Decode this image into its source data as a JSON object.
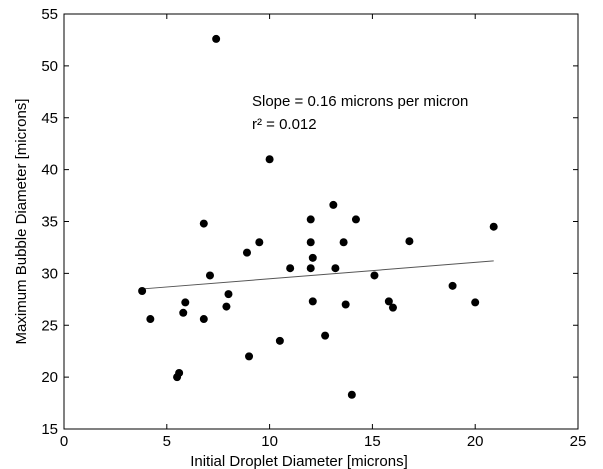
{
  "chart_data": {
    "type": "scatter",
    "title": "",
    "xlabel": "Initial Droplet Diameter [microns]",
    "ylabel": "Maximum Bubble Diameter [microns]",
    "xlim": [
      0,
      25
    ],
    "ylim": [
      15,
      55
    ],
    "xticks": [
      0,
      5,
      10,
      15,
      20,
      25
    ],
    "yticks": [
      15,
      20,
      25,
      30,
      35,
      40,
      45,
      50,
      55
    ],
    "grid": false,
    "legend": "none",
    "marker_color": "#000000",
    "fit_line_color": "#555555",
    "points": [
      {
        "x": 3.8,
        "y": 28.3
      },
      {
        "x": 4.2,
        "y": 25.6
      },
      {
        "x": 5.5,
        "y": 20.0
      },
      {
        "x": 5.6,
        "y": 20.4
      },
      {
        "x": 5.8,
        "y": 26.2
      },
      {
        "x": 5.9,
        "y": 27.2
      },
      {
        "x": 6.8,
        "y": 25.6
      },
      {
        "x": 6.8,
        "y": 34.8
      },
      {
        "x": 7.1,
        "y": 29.8
      },
      {
        "x": 7.4,
        "y": 52.6
      },
      {
        "x": 7.9,
        "y": 26.8
      },
      {
        "x": 8.0,
        "y": 28.0
      },
      {
        "x": 8.9,
        "y": 32.0
      },
      {
        "x": 9.0,
        "y": 22.0
      },
      {
        "x": 9.5,
        "y": 33.0
      },
      {
        "x": 10.0,
        "y": 41.0
      },
      {
        "x": 10.5,
        "y": 23.5
      },
      {
        "x": 11.0,
        "y": 30.5
      },
      {
        "x": 12.0,
        "y": 35.2
      },
      {
        "x": 12.0,
        "y": 33.0
      },
      {
        "x": 12.0,
        "y": 30.5
      },
      {
        "x": 12.1,
        "y": 31.5
      },
      {
        "x": 12.1,
        "y": 27.3
      },
      {
        "x": 12.7,
        "y": 24.0
      },
      {
        "x": 13.1,
        "y": 36.6
      },
      {
        "x": 13.2,
        "y": 30.5
      },
      {
        "x": 13.6,
        "y": 33.0
      },
      {
        "x": 13.7,
        "y": 27.0
      },
      {
        "x": 14.0,
        "y": 18.3
      },
      {
        "x": 14.2,
        "y": 35.2
      },
      {
        "x": 15.1,
        "y": 29.8
      },
      {
        "x": 15.8,
        "y": 27.3
      },
      {
        "x": 16.0,
        "y": 26.7
      },
      {
        "x": 16.8,
        "y": 33.1
      },
      {
        "x": 18.9,
        "y": 28.8
      },
      {
        "x": 20.0,
        "y": 27.2
      },
      {
        "x": 20.9,
        "y": 34.5
      }
    ],
    "fit_line": {
      "x": [
        3.8,
        20.9
      ],
      "y": [
        28.5,
        31.2
      ]
    },
    "annotations": [
      "Slope = 0.16 microns per micron",
      "r² = 0.012"
    ]
  }
}
